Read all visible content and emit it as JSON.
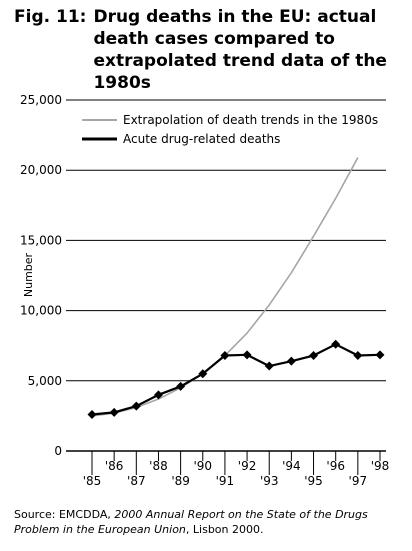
{
  "figure": {
    "label": "Fig. 11:",
    "title": "Drug deaths in the EU: actual death cases compared to extrapolated trend data of the 1980s"
  },
  "source": {
    "prefix": "Source: EMCDDA, ",
    "report": "2000 Annual Report on the State of the Drugs Problem in the European Union",
    "suffix": ", Lisbon 2000."
  },
  "chart_data": {
    "type": "line",
    "title": "Drug deaths in the EU: actual death cases compared to extrapolated trend data of the 1980s",
    "xlabel": "",
    "ylabel": "Number",
    "x": [
      "'85",
      "'86",
      "'87",
      "'88",
      "'89",
      "'90",
      "'91",
      "'92",
      "'93",
      "'94",
      "'95",
      "'96",
      "'97",
      "'98"
    ],
    "yticks": [
      0,
      5000,
      10000,
      15000,
      20000,
      25000
    ],
    "ytick_labels": [
      "0",
      "5,000",
      "10,000",
      "15,000",
      "20,000",
      "25,000"
    ],
    "ylim": [
      0,
      25000
    ],
    "grid": "horizontal",
    "legend_position": "top-left",
    "series": [
      {
        "name": "Extrapolation of death trends in the 1980s",
        "color": "#a6a6a6",
        "marker": "none",
        "values": [
          2500,
          2700,
          3100,
          3700,
          4500,
          5500,
          6800,
          8400,
          10400,
          12700,
          15300,
          18000,
          20900,
          null
        ]
      },
      {
        "name": "Acute drug-related deaths",
        "color": "#000000",
        "marker": "diamond",
        "values": [
          2600,
          2750,
          3200,
          4000,
          4600,
          5500,
          6800,
          6850,
          6050,
          6400,
          6800,
          7600,
          6800,
          6850
        ]
      }
    ]
  }
}
